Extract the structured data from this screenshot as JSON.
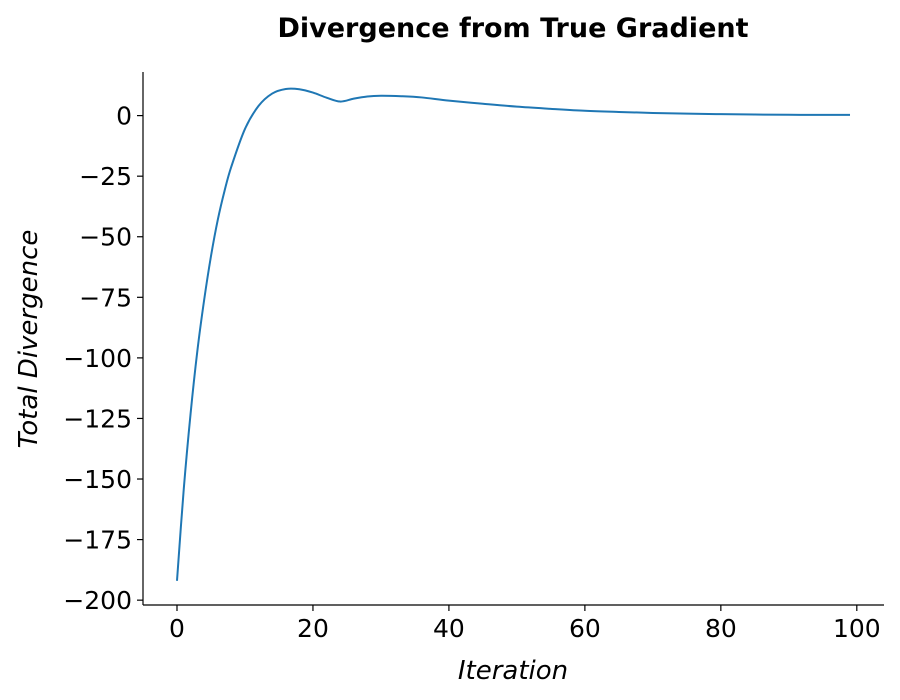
{
  "chart_data": {
    "type": "line",
    "title": "Divergence from True Gradient",
    "xlabel": "Iteration",
    "ylabel": "Total Divergence",
    "xlim": [
      -5,
      104
    ],
    "ylim": [
      -202,
      18
    ],
    "x_ticks": [
      0,
      20,
      40,
      60,
      80,
      100
    ],
    "x_tick_labels": [
      "0",
      "20",
      "40",
      "60",
      "80",
      "100"
    ],
    "y_ticks": [
      0,
      -25,
      -50,
      -75,
      -100,
      -125,
      -150,
      -175,
      -200
    ],
    "y_tick_labels": [
      "0",
      "−25",
      "−50",
      "−75",
      "−100",
      "−125",
      "−150",
      "−175",
      "−200"
    ],
    "grid": false,
    "series": [
      {
        "color": "#1f77b4",
        "x": [
          0,
          1,
          2,
          3,
          4,
          5,
          6,
          7,
          8,
          10,
          12,
          14,
          16,
          18,
          20,
          22,
          24,
          26,
          28,
          30,
          33,
          36,
          40,
          45,
          50,
          55,
          60,
          65,
          70,
          75,
          80,
          85,
          90,
          95,
          99
        ],
        "y": [
          -192,
          -154,
          -123,
          -97,
          -76,
          -58,
          -43,
          -31,
          -21,
          -5.5,
          4.0,
          9.1,
          11.0,
          10.9,
          9.5,
          7.4,
          5.8,
          7.0,
          7.9,
          8.2,
          8.0,
          7.5,
          6.2,
          4.9,
          3.7,
          2.8,
          2.0,
          1.5,
          1.1,
          0.8,
          0.6,
          0.45,
          0.35,
          0.3,
          0.3
        ]
      }
    ]
  }
}
